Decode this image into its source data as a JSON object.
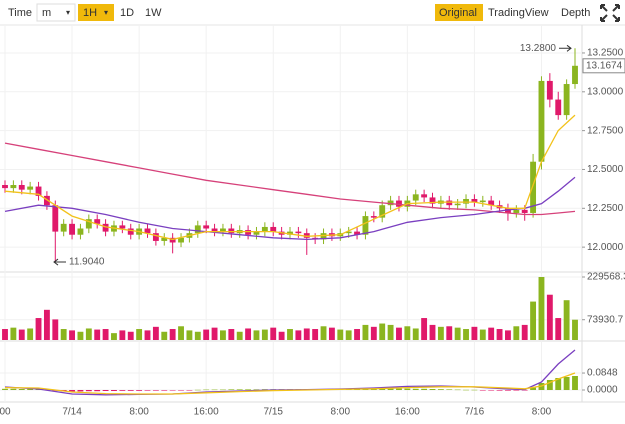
{
  "toolbar": {
    "items": [
      "Time",
      "m",
      "1H",
      "1D",
      "1W"
    ],
    "views": [
      "Original",
      "TradingView",
      "Depth"
    ]
  },
  "chart_data": [
    {
      "type": "candlestick",
      "categories": [
        "00",
        null,
        null,
        null,
        null,
        null,
        null,
        null,
        "7/14",
        null,
        null,
        null,
        null,
        null,
        null,
        null,
        "8:00",
        null,
        null,
        null,
        null,
        null,
        null,
        null,
        "16:00",
        null,
        null,
        null,
        null,
        null,
        null,
        null,
        "7/15",
        null,
        null,
        null,
        null,
        null,
        null,
        null,
        "8:00",
        null,
        null,
        null,
        null,
        null,
        null,
        null,
        "16:00",
        null,
        null,
        null,
        null,
        null,
        null,
        null,
        "7/16",
        null,
        null,
        null,
        null,
        null,
        null,
        null,
        "8:00",
        null,
        null,
        null,
        null
      ],
      "open": [
        12.4,
        12.38,
        12.4,
        12.37,
        12.39,
        12.33,
        12.27,
        12.1,
        12.15,
        12.08,
        12.12,
        12.18,
        12.15,
        12.1,
        12.14,
        12.12,
        12.08,
        12.12,
        12.09,
        12.04,
        12.06,
        12.03,
        12.06,
        12.09,
        12.14,
        12.12,
        12.1,
        12.12,
        12.09,
        12.11,
        12.08,
        12.1,
        12.13,
        12.1,
        12.08,
        12.1,
        12.09,
        12.06,
        12.05,
        12.09,
        12.07,
        12.09,
        12.1,
        12.08,
        12.2,
        12.19,
        12.27,
        12.3,
        12.26,
        12.3,
        12.34,
        12.32,
        12.28,
        12.3,
        12.27,
        12.28,
        12.31,
        12.29,
        12.3,
        12.27,
        12.25,
        12.22,
        12.24,
        12.22,
        12.55,
        13.07,
        12.95,
        12.85,
        13.05
      ],
      "high": [
        12.43,
        12.43,
        12.43,
        12.42,
        12.42,
        12.36,
        12.3,
        12.18,
        12.18,
        12.15,
        12.21,
        12.21,
        12.18,
        12.17,
        12.17,
        12.15,
        12.15,
        12.15,
        12.12,
        12.09,
        12.09,
        12.09,
        12.12,
        12.17,
        12.17,
        12.15,
        12.15,
        12.15,
        12.14,
        12.14,
        12.13,
        12.16,
        12.16,
        12.13,
        12.13,
        12.13,
        12.12,
        12.09,
        12.12,
        12.12,
        12.12,
        12.13,
        12.13,
        12.23,
        12.23,
        12.3,
        12.33,
        12.33,
        12.33,
        12.37,
        12.37,
        12.35,
        12.33,
        12.33,
        12.31,
        12.34,
        12.34,
        12.33,
        12.33,
        12.3,
        12.28,
        12.27,
        12.27,
        12.6,
        13.1,
        13.12,
        13.0,
        13.08,
        13.28
      ],
      "low": [
        12.35,
        12.35,
        12.34,
        12.34,
        12.3,
        12.24,
        11.904,
        12.07,
        12.05,
        12.05,
        12.09,
        12.12,
        12.07,
        12.07,
        12.09,
        12.05,
        12.05,
        12.06,
        12.01,
        12.01,
        11.96,
        12.0,
        12.03,
        12.06,
        12.09,
        12.07,
        12.07,
        12.06,
        12.06,
        12.05,
        12.05,
        12.07,
        12.07,
        12.05,
        12.05,
        12.06,
        11.95,
        12.02,
        12.02,
        12.04,
        12.04,
        12.06,
        12.05,
        12.05,
        12.16,
        12.16,
        12.24,
        12.23,
        12.23,
        12.27,
        12.29,
        12.25,
        12.25,
        12.24,
        12.24,
        12.25,
        12.26,
        12.26,
        12.24,
        12.22,
        12.17,
        12.19,
        12.17,
        12.19,
        12.5,
        12.9,
        12.82,
        12.82,
        13.02
      ],
      "close": [
        12.38,
        12.4,
        12.37,
        12.39,
        12.33,
        12.27,
        12.1,
        12.15,
        12.08,
        12.12,
        12.18,
        12.15,
        12.1,
        12.14,
        12.12,
        12.08,
        12.12,
        12.09,
        12.04,
        12.06,
        12.03,
        12.06,
        12.09,
        12.14,
        12.12,
        12.1,
        12.12,
        12.09,
        12.11,
        12.08,
        12.1,
        12.13,
        12.1,
        12.08,
        12.1,
        12.09,
        12.06,
        12.05,
        12.09,
        12.07,
        12.09,
        12.1,
        12.08,
        12.2,
        12.19,
        12.27,
        12.3,
        12.26,
        12.3,
        12.34,
        12.32,
        12.28,
        12.3,
        12.27,
        12.28,
        12.31,
        12.29,
        12.3,
        12.27,
        12.25,
        12.22,
        12.24,
        12.22,
        12.55,
        13.07,
        12.95,
        12.85,
        13.05,
        13.1674
      ],
      "up_color": "#8bb51f",
      "down_color": "#e0196a",
      "series": [
        {
          "color": "#d6417a",
          "x": [
            0,
            4,
            8,
            12,
            16,
            20,
            24,
            28,
            32,
            36,
            40,
            44,
            48,
            52,
            56,
            60,
            62,
            64,
            66,
            68
          ],
          "values": [
            12.67,
            12.63,
            12.59,
            12.55,
            12.51,
            12.47,
            12.43,
            12.4,
            12.37,
            12.34,
            12.31,
            12.29,
            12.27,
            12.25,
            12.24,
            12.22,
            12.21,
            12.21,
            12.22,
            12.23
          ]
        },
        {
          "color": "#7a3fc0",
          "x": [
            0,
            4,
            8,
            12,
            16,
            20,
            24,
            28,
            32,
            36,
            40,
            44,
            48,
            52,
            56,
            60,
            62,
            64,
            66,
            68
          ],
          "values": [
            12.23,
            12.27,
            12.25,
            12.21,
            12.16,
            12.12,
            12.1,
            12.08,
            12.06,
            12.05,
            12.06,
            12.1,
            12.16,
            12.19,
            12.21,
            12.24,
            12.25,
            12.28,
            12.36,
            12.45
          ]
        },
        {
          "color": "#f2c21b",
          "x": [
            0,
            4,
            8,
            12,
            16,
            20,
            24,
            28,
            32,
            36,
            40,
            44,
            48,
            52,
            56,
            60,
            62,
            64,
            66,
            68
          ],
          "values": [
            12.36,
            12.34,
            12.2,
            12.13,
            12.1,
            12.05,
            12.1,
            12.1,
            12.1,
            12.07,
            12.08,
            12.18,
            12.28,
            12.29,
            12.29,
            12.25,
            12.25,
            12.55,
            12.75,
            12.85
          ]
        }
      ],
      "ylim": [
        11.84,
        13.43
      ],
      "yticks": [
        {
          "value": 12,
          "label": "12.0000"
        },
        {
          "value": 12.25,
          "label": "12.2500"
        },
        {
          "value": 12.5,
          "label": "12.5000"
        },
        {
          "value": 12.75,
          "label": "12.7500"
        },
        {
          "value": 13,
          "label": "13.0000"
        },
        {
          "value": 13.25,
          "label": "13.2500"
        }
      ],
      "annotations": [
        {
          "value": 13.28,
          "label": "13.2800"
        },
        {
          "value": 11.904,
          "label": "11.9040"
        }
      ],
      "grid": true
    },
    {
      "type": "bar",
      "values": [
        40000,
        45000,
        38000,
        42000,
        80000,
        110000,
        75000,
        40000,
        35000,
        30000,
        42000,
        38000,
        40000,
        25000,
        35000,
        30000,
        40000,
        35000,
        48000,
        30000,
        40000,
        50000,
        35000,
        30000,
        38000,
        45000,
        35000,
        40000,
        30000,
        42000,
        35000,
        38000,
        45000,
        30000,
        40000,
        35000,
        42000,
        40000,
        50000,
        45000,
        38000,
        35000,
        40000,
        55000,
        48000,
        60000,
        55000,
        45000,
        50000,
        42000,
        80000,
        55000,
        48000,
        50000,
        45000,
        40000,
        48000,
        38000,
        45000,
        40000,
        35000,
        50000,
        55000,
        140000,
        229568.33,
        165000,
        80000,
        145000,
        73930.7
      ],
      "ylim": [
        0,
        229568.33
      ],
      "yticks": [
        73930.7,
        229568.33
      ]
    },
    {
      "type": "macd",
      "values": [
        0.006,
        0.006,
        0.005,
        0.005,
        0.004,
        0.002,
        -0.004,
        -0.006,
        -0.007,
        -0.007,
        -0.006,
        -0.006,
        -0.005,
        -0.005,
        -0.004,
        -0.004,
        -0.004,
        -0.003,
        -0.003,
        -0.003,
        -0.002,
        -0.002,
        -0.001,
        0.001,
        0.002,
        0.002,
        0.002,
        0.003,
        0.003,
        0.003,
        0.003,
        0.004,
        0.004,
        0.004,
        0.004,
        0.004,
        0.004,
        0.004,
        0.005,
        0.005,
        0.005,
        0.005,
        0.005,
        0.006,
        0.006,
        0.007,
        0.007,
        0.007,
        0.007,
        0.006,
        0.006,
        0.005,
        0.004,
        0.003,
        0.002,
        0.001,
        0.001,
        -0.001,
        -0.002,
        -0.003,
        -0.003,
        -0.002,
        -0.002,
        0.012,
        0.035,
        0.05,
        0.06,
        0.065,
        0.07
      ],
      "series": [
        {
          "color": "#7a3fc0",
          "x": [
            0,
            4,
            8,
            12,
            16,
            20,
            24,
            28,
            32,
            36,
            40,
            44,
            48,
            52,
            56,
            60,
            62,
            64,
            66,
            68
          ],
          "values": [
            0.015,
            0.005,
            -0.02,
            -0.024,
            -0.022,
            -0.02,
            -0.01,
            -0.005,
            0.0,
            0.002,
            0.005,
            0.01,
            0.018,
            0.02,
            0.015,
            0.005,
            0.002,
            0.04,
            0.13,
            0.2
          ]
        },
        {
          "color": "#f2c21b",
          "x": [
            0,
            4,
            8,
            12,
            16,
            20,
            24,
            28,
            32,
            36,
            40,
            44,
            48,
            52,
            56,
            60,
            62,
            64,
            66,
            68
          ],
          "values": [
            0.012,
            0.01,
            -0.01,
            -0.018,
            -0.02,
            -0.02,
            -0.014,
            -0.008,
            -0.003,
            0.0,
            0.003,
            0.006,
            0.012,
            0.016,
            0.016,
            0.01,
            0.006,
            0.02,
            0.055,
            0.0848
          ]
        }
      ],
      "ylim": [
        -0.05,
        0.24
      ],
      "yticks": [
        {
          "value": 0,
          "label": "0.0000"
        },
        0.0848
      ]
    }
  ]
}
